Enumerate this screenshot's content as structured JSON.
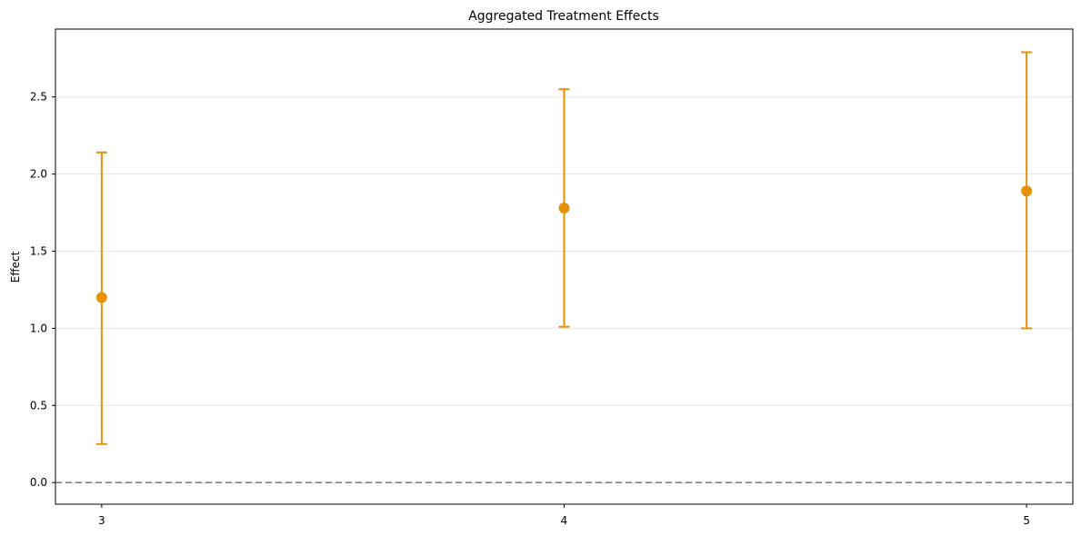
{
  "chart_data": {
    "type": "scatter",
    "title": "Aggregated Treatment Effects",
    "xlabel": "",
    "ylabel": "Effect",
    "categories": [
      "3",
      "4",
      "5"
    ],
    "x": [
      3,
      4,
      5
    ],
    "values": [
      1.2,
      1.78,
      1.89
    ],
    "ci_lower": [
      0.25,
      1.01,
      1.0
    ],
    "ci_upper": [
      2.14,
      2.55,
      2.79
    ],
    "xlim": [
      2.9,
      5.1
    ],
    "ylim": [
      -0.14,
      2.94
    ],
    "yticks": [
      "0.0",
      "0.5",
      "1.0",
      "1.5",
      "2.0",
      "2.5"
    ],
    "reference_line": 0.0,
    "grid": "horizontal",
    "colors": {
      "marker": "#E69109",
      "reference": "#808080",
      "grid": "#e6e6e6",
      "axis": "#000000"
    }
  }
}
